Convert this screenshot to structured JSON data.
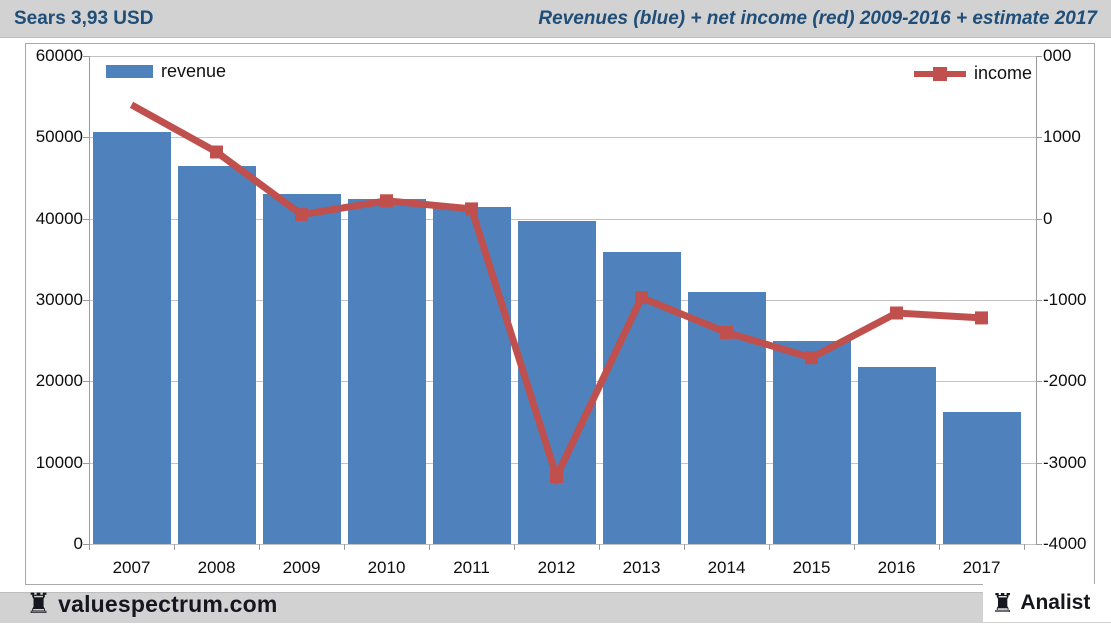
{
  "header": {
    "left_title": "Sears 3,93 USD",
    "right_title": "Revenues (blue) + net income (red) 2009-2016 + estimate 2017"
  },
  "legend": {
    "revenue_label": "revenue",
    "income_label": "income"
  },
  "footer": {
    "left_brand": "valuespectrum.com",
    "right_brand": "Analist",
    "rook_glyph": "♜"
  },
  "colors": {
    "bar_blue": "#4F81BD",
    "line_red": "#C0504D",
    "title_blue": "#1F4E79",
    "band_grey": "#D2D2D2"
  },
  "chart_data": {
    "type": "bar",
    "title": "Revenues (blue) + net income (red) 2009-2016 + estimate 2017",
    "categories": [
      "2007",
      "2008",
      "2009",
      "2010",
      "2011",
      "2012",
      "2013",
      "2014",
      "2015",
      "2016",
      "2017"
    ],
    "series": [
      {
        "name": "revenue",
        "type": "bar",
        "axis": "left",
        "color": "#4F81BD",
        "values": [
          50600,
          46500,
          43000,
          42400,
          41400,
          39700,
          35900,
          31000,
          24900,
          21800,
          16200
        ]
      },
      {
        "name": "income",
        "type": "line",
        "axis": "right",
        "color": "#C0504D",
        "marker": "square",
        "marker_skip_first": true,
        "values": [
          1400,
          820,
          50,
          220,
          120,
          -3170,
          -970,
          -1400,
          -1710,
          -1160,
          -1220
        ]
      }
    ],
    "left_axis": {
      "range": [
        0,
        60000
      ],
      "tick_labels": [
        "60000",
        "50000",
        "40000",
        "30000",
        "20000",
        "10000",
        "0"
      ]
    },
    "right_axis": {
      "range": [
        -4000,
        2000
      ],
      "tick_labels_displayed": [
        "000",
        "1000",
        "0",
        "-1000",
        "-2000",
        "-3000",
        "-4000"
      ]
    },
    "grid": true,
    "legend_position": "top"
  }
}
